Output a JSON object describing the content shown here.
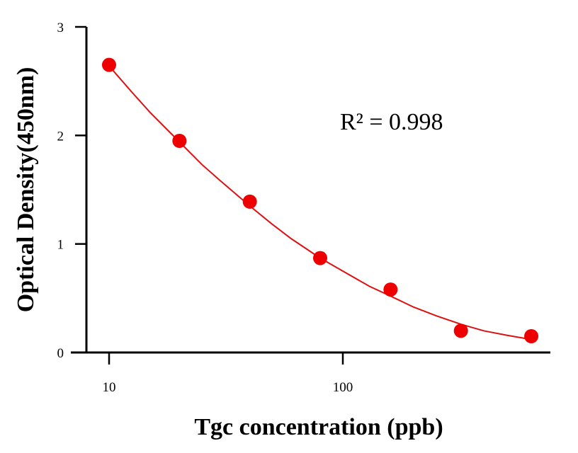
{
  "chart_data": {
    "type": "scatter",
    "title": "",
    "xlabel": "Tgc concentration (ppb)",
    "ylabel": "Optical Density(450nm)",
    "xscale": "log",
    "xlim": [
      8,
      700
    ],
    "ylim": [
      0,
      3
    ],
    "xticks": [
      10,
      100
    ],
    "yticks": [
      0,
      1,
      2,
      3
    ],
    "grid": false,
    "legend": "none",
    "annotation": "R² = 0.998",
    "point_color": "#ee0000",
    "line_color": "#dd1111",
    "series": [
      {
        "x": [
          10,
          20,
          40,
          80,
          160,
          320,
          640
        ],
        "y": [
          2.65,
          1.95,
          1.39,
          0.87,
          0.58,
          0.2,
          0.15
        ]
      }
    ],
    "fit_curve": {
      "x": [
        10,
        12.5,
        15,
        20,
        25,
        30,
        40,
        50,
        60,
        80,
        100,
        130,
        160,
        200,
        250,
        320,
        400,
        500,
        640
      ],
      "y": [
        2.64,
        2.4,
        2.21,
        1.94,
        1.73,
        1.58,
        1.35,
        1.18,
        1.05,
        0.87,
        0.75,
        0.61,
        0.52,
        0.42,
        0.34,
        0.26,
        0.2,
        0.16,
        0.12
      ]
    }
  }
}
